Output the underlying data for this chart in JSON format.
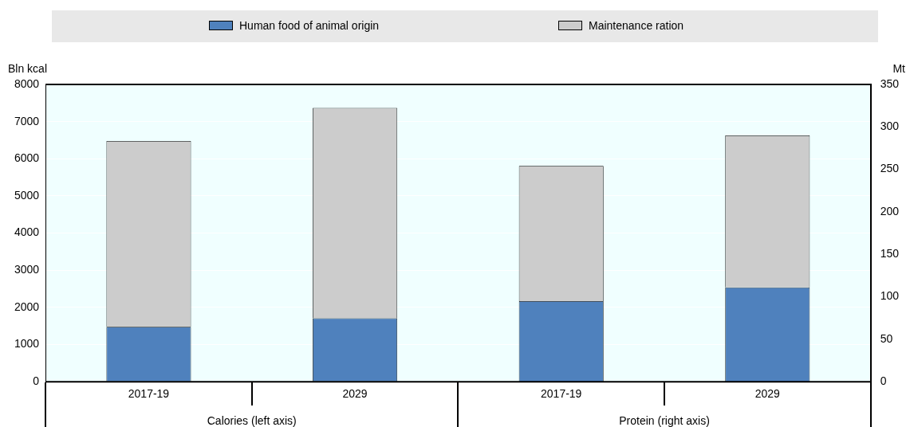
{
  "chart_data": {
    "type": "bar",
    "stacked": true,
    "categories": [
      "2017-19",
      "2029",
      "2017-19",
      "2029"
    ],
    "series": [
      {
        "name": "Human food of animal origin",
        "color": "#4f81bd",
        "values": [
          1480,
          1710,
          null,
          null
        ]
      },
      {
        "name": "Maintenance ration",
        "color": "#cccccc",
        "values": [
          5000,
          5660,
          null,
          null
        ]
      },
      {
        "color": "#4f81bd",
        "values": [
          null,
          null,
          95,
          111
        ],
        "axis": "y2"
      },
      {
        "color": "#cccccc",
        "values": [
          null,
          null,
          159,
          179
        ],
        "axis": "y2"
      }
    ],
    "ylabel": "Bln kcal",
    "y2label": "Mt",
    "ylim": [
      0,
      8000
    ],
    "yticks": [
      0,
      1000,
      2000,
      3000,
      4000,
      5000,
      6000,
      7000,
      8000
    ],
    "y2lim": [
      0,
      350
    ],
    "y2ticks": [
      0,
      50,
      100,
      150,
      200,
      250,
      300,
      350
    ],
    "annotations": [
      "Calories (left axis)",
      "Protein (right axis)"
    ],
    "grid": "y",
    "legend": "top"
  }
}
